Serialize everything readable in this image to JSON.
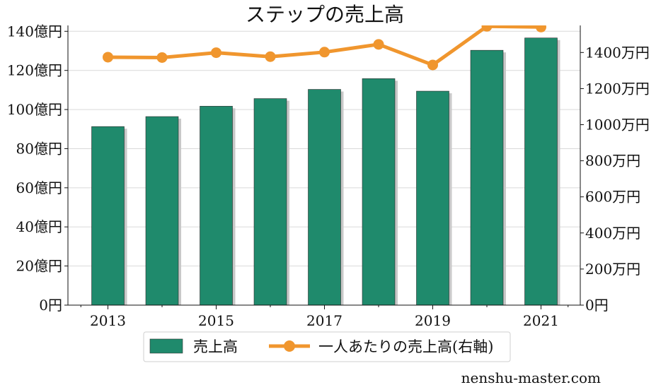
{
  "chart_data": {
    "type": "bar",
    "title": "ステップの売上高",
    "years": [
      2013,
      2014,
      2015,
      2016,
      2017,
      2018,
      2019,
      2020,
      2021
    ],
    "x_tick_labels": [
      "2013",
      "2015",
      "2017",
      "2019",
      "2021"
    ],
    "series": [
      {
        "name": "売上高",
        "type": "bar",
        "axis": "left",
        "unit": "億円",
        "color": "#1f8a6c",
        "values": [
          91.3,
          96.4,
          101.7,
          105.6,
          110.3,
          115.8,
          109.4,
          130.3,
          136.6
        ]
      },
      {
        "name": "一人あたりの売上高(右軸)",
        "type": "line",
        "axis": "right",
        "unit": "万円",
        "color": "#f0962e",
        "values": [
          1374,
          1372,
          1399,
          1377,
          1402,
          1445,
          1331,
          1545,
          1541
        ]
      }
    ],
    "left_axis": {
      "ylim": [
        0,
        143
      ],
      "ticks": [
        0,
        20,
        40,
        60,
        80,
        100,
        120,
        140
      ],
      "tick_labels": [
        "0円",
        "20億円",
        "40億円",
        "60億円",
        "80億円",
        "100億円",
        "120億円",
        "140億円"
      ]
    },
    "right_axis": {
      "ylim": [
        0,
        1550
      ],
      "ticks": [
        0,
        200,
        400,
        600,
        800,
        1000,
        1200,
        1400
      ],
      "tick_labels": [
        "0円",
        "200万円",
        "400万円",
        "600万円",
        "800万円",
        "1000万円",
        "1200万円",
        "1400万円"
      ]
    },
    "grid": true,
    "legend_position": "bottom-center"
  },
  "watermark": "nenshu-master.com"
}
